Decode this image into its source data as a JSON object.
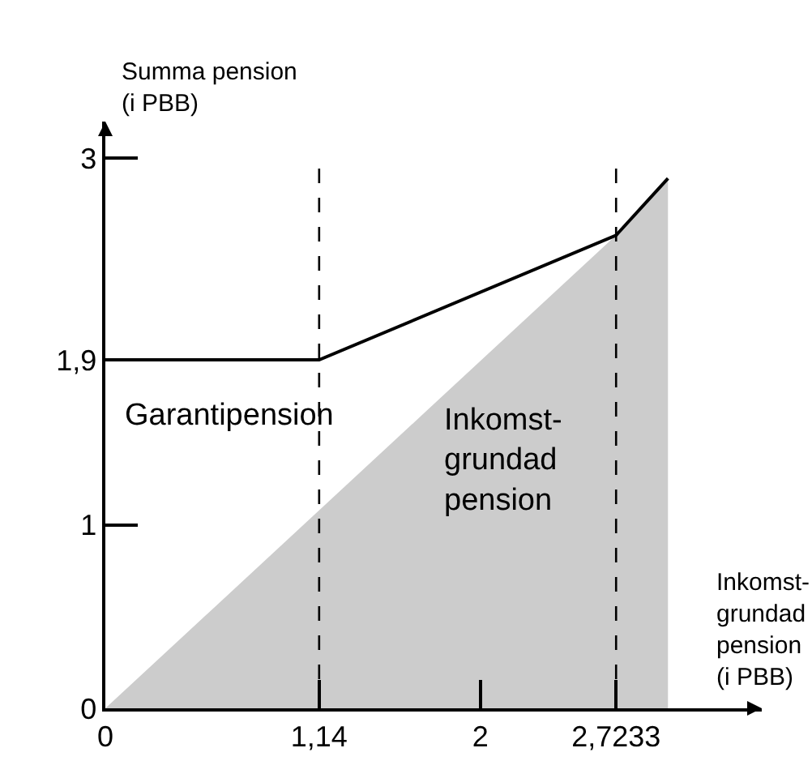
{
  "chart_data": {
    "type": "line",
    "xlabel": "Inkomst-\ngrundad\npension\n(i PBB)",
    "ylabel": "Summa pension\n(i PBB)",
    "xlim": [
      0,
      3.5
    ],
    "ylim": [
      0,
      3.2
    ],
    "xticks": [
      0,
      {
        "value": 1.14,
        "label": "1,14"
      },
      2,
      {
        "value": 2.7233,
        "label": "2,7233"
      }
    ],
    "yticks": [
      0,
      1,
      {
        "value": 1.9,
        "label": "1,9"
      },
      3
    ],
    "series": [
      {
        "type": "area",
        "color": "#cccccc",
        "x": [
          0,
          2.7233,
          3.0
        ],
        "values": [
          0,
          2.58,
          2.89
        ]
      },
      {
        "color": "#000000",
        "x": [
          0,
          1.14,
          2.7233,
          3.0
        ],
        "values": [
          1.9,
          1.9,
          2.58,
          2.89
        ]
      }
    ],
    "ref_lines": [
      {
        "axis": "x",
        "value": 1.14,
        "line_style": "dashed",
        "color": "#000000"
      },
      {
        "axis": "x",
        "value": 2.7233,
        "line_style": "dashed",
        "color": "#000000"
      }
    ],
    "annotations": [
      "Garantipension",
      "Inkomst-\ngrundad\npension"
    ],
    "marker": "none"
  }
}
